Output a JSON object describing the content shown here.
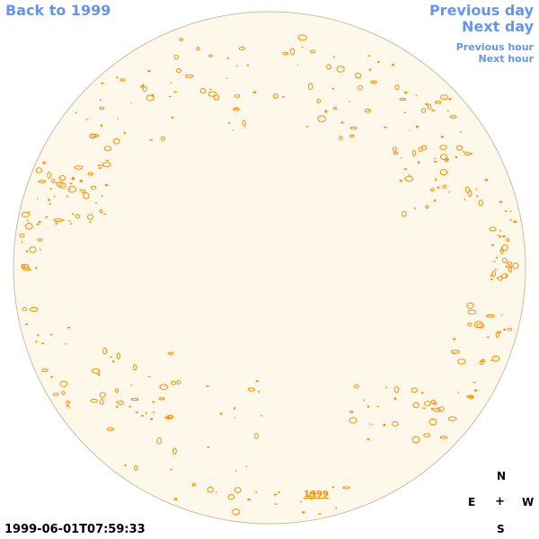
{
  "nav": {
    "back_label": "Back to 1999",
    "previous_day": "Previous day",
    "next_day": "Next day",
    "previous_hour": "Previous hour",
    "next_hour": "Next hour"
  },
  "disk": {
    "fill_color": "#fdf8ea",
    "border_color": "#c8bfa8",
    "contour_color": "#ff8c00"
  },
  "year_label": "1999",
  "compass": {
    "north": "N",
    "east": "E",
    "center": "+",
    "west": "W",
    "south": "S"
  },
  "timestamp": "1999-06-01T07:59:33"
}
